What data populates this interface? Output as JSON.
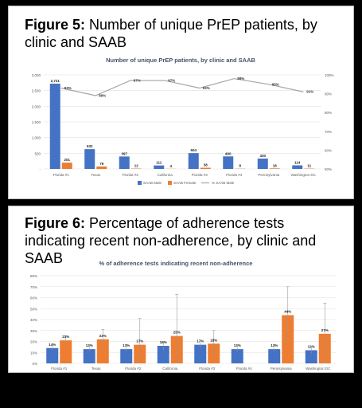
{
  "fig5": {
    "prefix": "Figure 5:",
    "caption": "Number of unique PrEP patients, by clinic and SAAB"
  },
  "fig6": {
    "prefix": "Figure 6:",
    "caption": "Percentage of adherence tests indicating recent non-adherence, by clinic and SAAB"
  },
  "colors": {
    "male": "#4472c4",
    "female": "#ed7d31",
    "line": "#a5a5a5",
    "grid": "#e0e0e0",
    "axis_text": "#595959",
    "title": "#44546a"
  },
  "chart_data": [
    {
      "type": "bar",
      "title": "Number of unique PrEP patients, by clinic and SAAB",
      "categories": [
        "Florida #1",
        "Texas",
        "Florida #2",
        "California",
        "Florida #3",
        "Florida #4",
        "Pennsylvania",
        "Washington DC"
      ],
      "series": [
        {
          "name": "SAAB Male",
          "values": [
            2721,
            632,
            397,
            111,
            504,
            400,
            330,
            114
          ],
          "labels": [
            "2,721",
            "632",
            "397",
            "111",
            "504",
            "400",
            "330",
            "114"
          ]
        },
        {
          "name": "SAAB Female",
          "values": [
            201,
            79,
            12,
            4,
            38,
            8,
            18,
            11
          ],
          "labels": [
            "201",
            "79",
            "12",
            "4",
            "38",
            "8",
            "18",
            "11"
          ]
        },
        {
          "name": "% SAAB Male",
          "type": "line",
          "axis": "secondary",
          "values": [
            93,
            89,
            97,
            97,
            93,
            98,
            95,
            91
          ],
          "labels": [
            "93%",
            "89%",
            "97%",
            "97%",
            "93%",
            "98%",
            "95%",
            "91%"
          ]
        }
      ],
      "ylim": [
        0,
        3000
      ],
      "yticks": [
        "-",
        "500",
        "1,000",
        "1,500",
        "2,000",
        "2,500",
        "3,000"
      ],
      "y2lim": [
        50,
        100
      ],
      "y2ticks": [
        "50%",
        "60%",
        "70%",
        "80%",
        "90%",
        "100%"
      ],
      "legend": "bottom"
    },
    {
      "type": "bar",
      "title": "% of adherence tests indicating recent non-adherence",
      "categories": [
        "Florida #1",
        "Texas",
        "Florida #2",
        "California",
        "Florida #3",
        "Florida #4",
        "Pennsylvania",
        "Washington DC"
      ],
      "series": [
        {
          "name": "SAAB Male",
          "values": [
            14,
            13,
            13,
            16,
            17,
            13,
            13,
            12
          ],
          "labels": [
            "14%",
            "13%",
            "13%",
            "16%",
            "17%",
            "13%",
            "13%",
            "12%"
          ],
          "err": [
            2,
            2,
            2,
            4,
            3,
            2,
            2,
            3
          ]
        },
        {
          "name": "SAAB Female",
          "values": [
            21,
            22,
            17,
            25,
            18,
            null,
            44,
            27
          ],
          "labels": [
            "21%",
            "22%",
            "17%",
            "25%",
            "18%",
            "",
            "44%",
            "27%"
          ],
          "err": [
            4,
            9,
            24,
            38,
            12,
            0,
            26,
            28
          ]
        }
      ],
      "ylim": [
        0,
        80
      ],
      "yticks": [
        "0%",
        "10%",
        "20%",
        "30%",
        "40%",
        "50%",
        "60%",
        "70%",
        "80%"
      ],
      "legend": "bottom"
    }
  ]
}
